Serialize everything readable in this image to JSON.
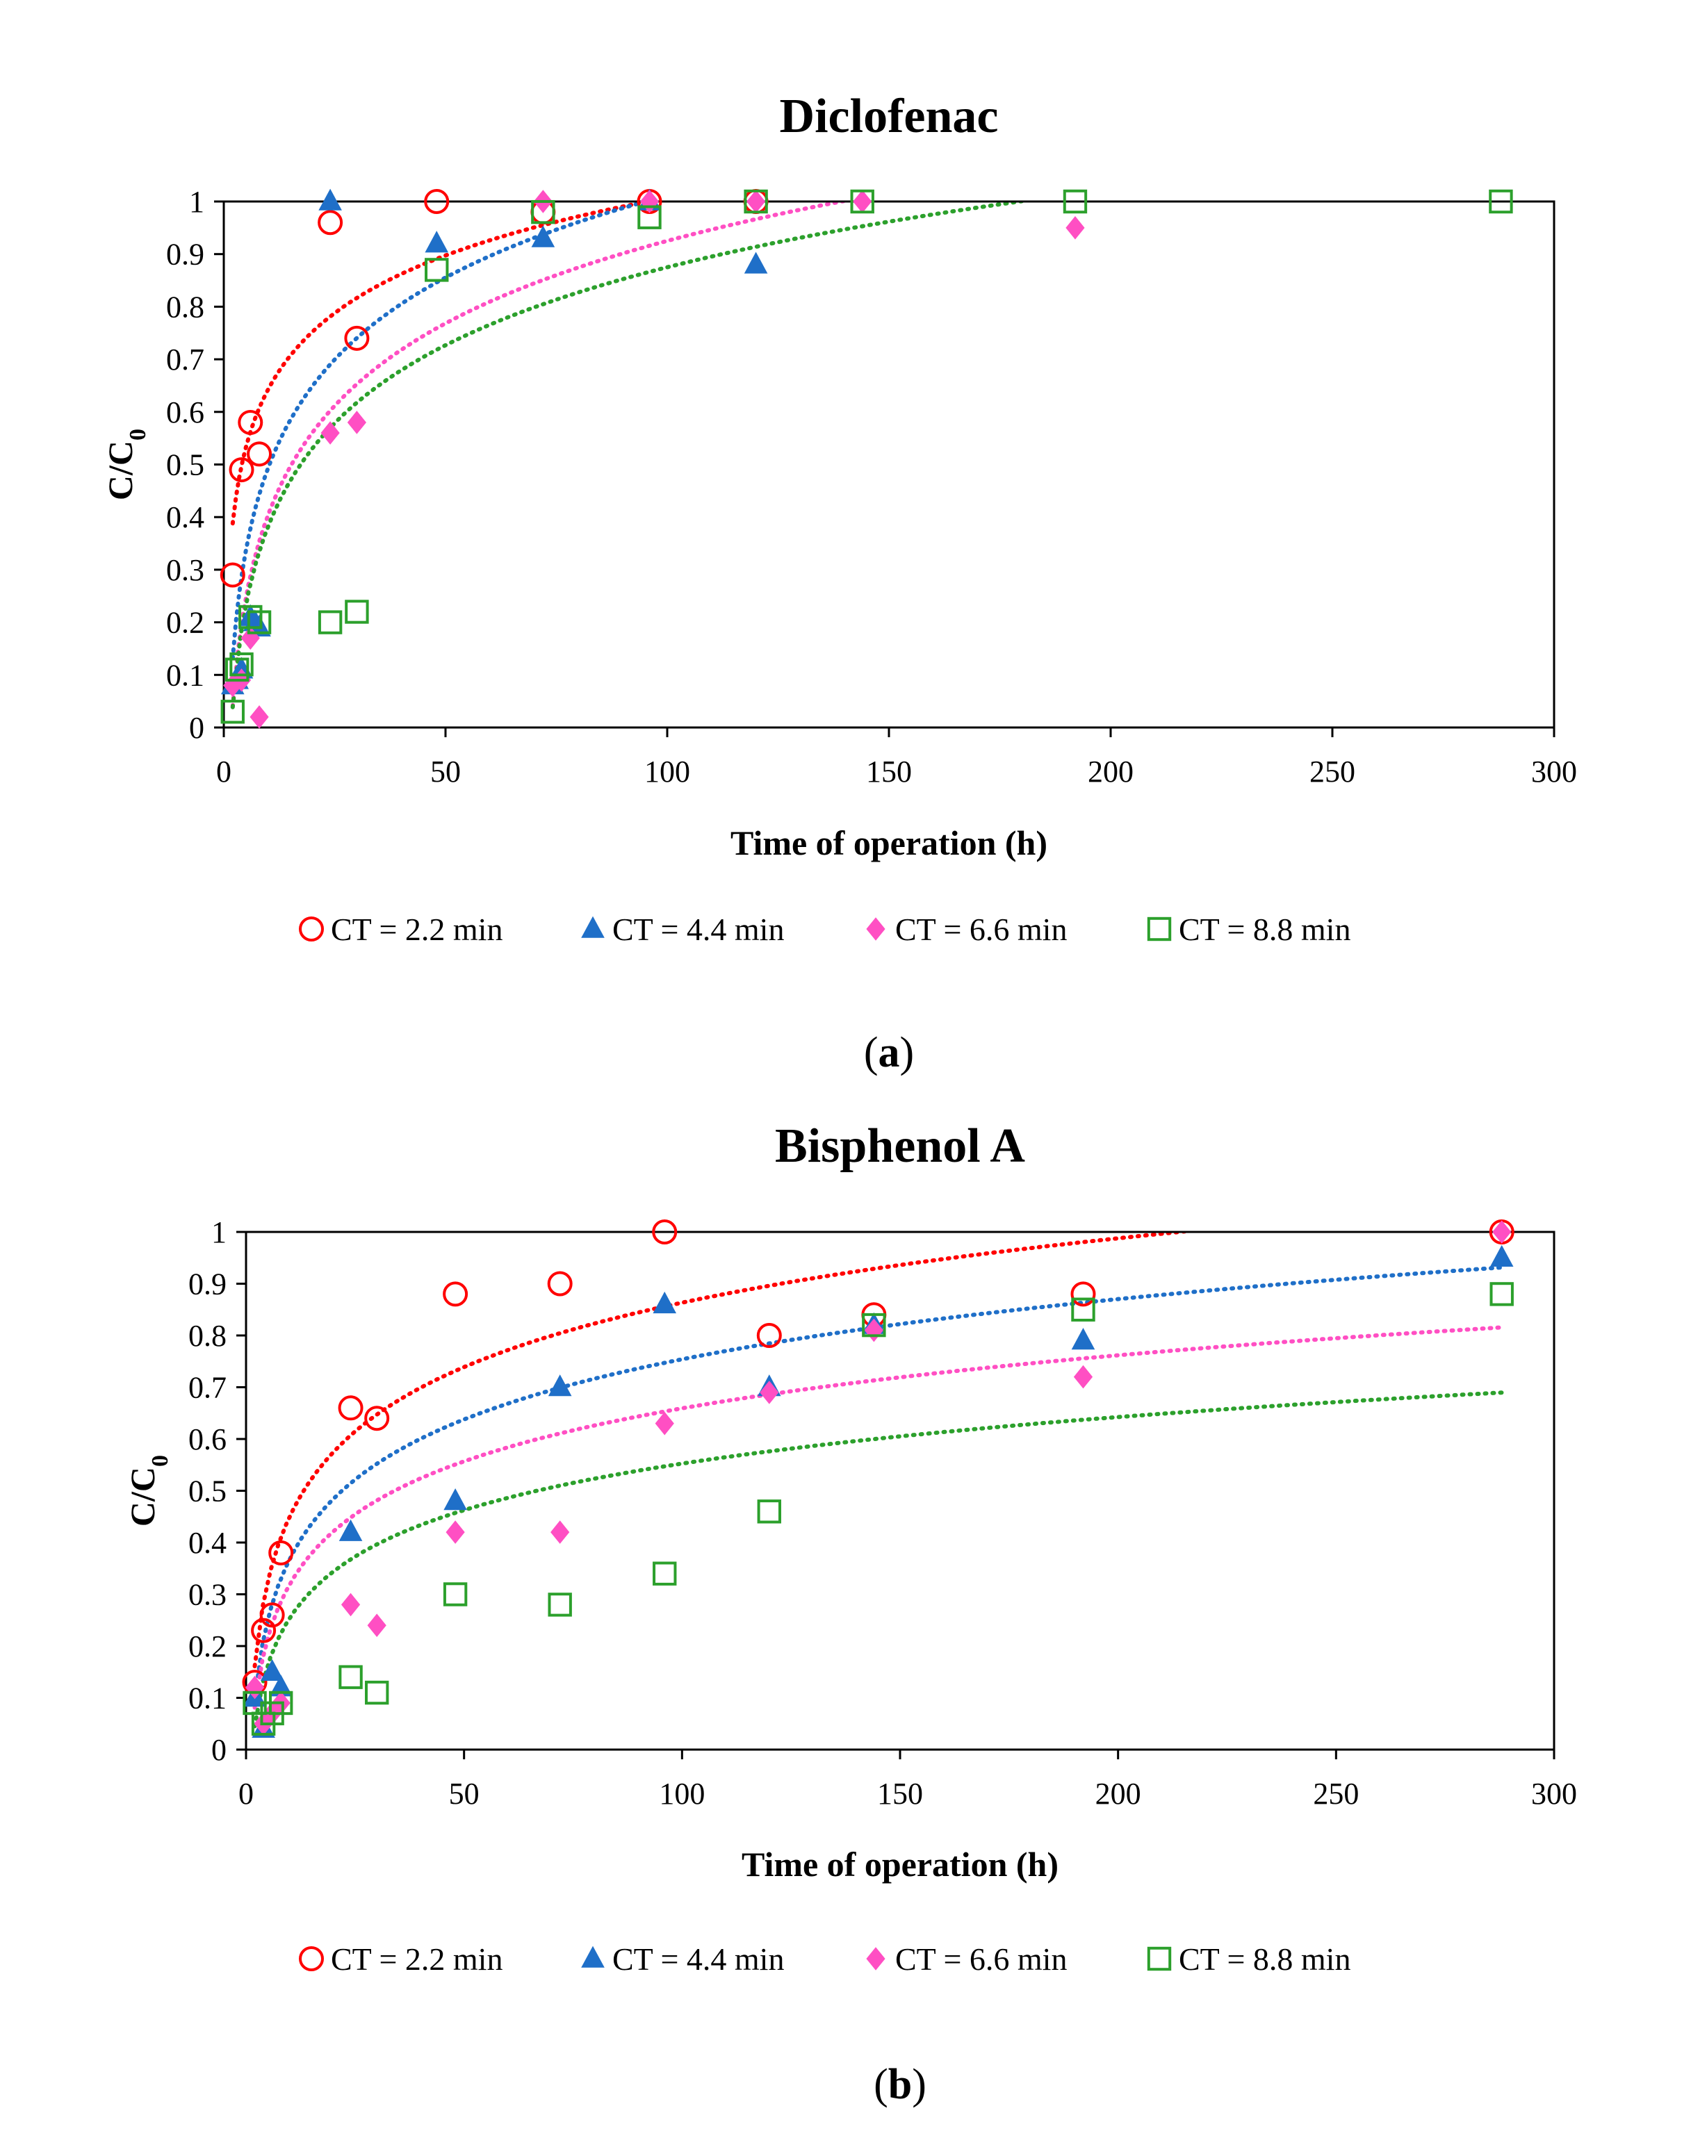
{
  "chart_data": [
    {
      "type": "scatter",
      "title": "Diclofenac",
      "panel_label": "a",
      "xlabel": "Time of operation (h)",
      "ylabel": "C/C",
      "ylabel_sub": "0",
      "xlim": [
        0,
        300
      ],
      "ylim": [
        0,
        1
      ],
      "xticks": [
        0,
        50,
        100,
        150,
        200,
        250,
        300
      ],
      "yticks": [
        0,
        0.1,
        0.2,
        0.3,
        0.4,
        0.5,
        0.6,
        0.7,
        0.8,
        0.9,
        1
      ],
      "grid": false,
      "legend_position": "bottom",
      "series": [
        {
          "name": "CT = 2.2 min",
          "color": "#ff0000",
          "marker": "open-circle",
          "points": [
            [
              2,
              0.29
            ],
            [
              4,
              0.49
            ],
            [
              6,
              0.58
            ],
            [
              8,
              0.52
            ],
            [
              24,
              0.96
            ],
            [
              30,
              0.74
            ],
            [
              48,
              1.0
            ],
            [
              72,
              0.98
            ],
            [
              96,
              1.0
            ],
            [
              120,
              1.0
            ]
          ],
          "trend": {
            "type": "log",
            "a": 0.2785,
            "b": 0.1582
          }
        },
        {
          "name": "CT = 4.4 min",
          "color": "#1f6fc8",
          "marker": "filled-triangle",
          "points": [
            [
              2,
              0.08
            ],
            [
              3,
              0.09
            ],
            [
              4,
              0.11
            ],
            [
              6,
              0.21
            ],
            [
              7,
              0.2
            ],
            [
              8,
              0.19
            ],
            [
              24,
              1.0
            ],
            [
              48,
              0.92
            ],
            [
              72,
              0.93
            ],
            [
              96,
              1.0
            ],
            [
              120,
              0.88
            ]
          ],
          "trend": {
            "type": "log",
            "a": -0.0245,
            "b": 0.2249
          }
        },
        {
          "name": "CT = 6.6 min",
          "color": "#ff4fc3",
          "marker": "filled-diamond",
          "points": [
            [
              2,
              0.08
            ],
            [
              4,
              0.09
            ],
            [
              6,
              0.17
            ],
            [
              8,
              0.02
            ],
            [
              24,
              0.56
            ],
            [
              30,
              0.58
            ],
            [
              72,
              1.0
            ],
            [
              96,
              1.0
            ],
            [
              120,
              1.0
            ],
            [
              144,
              1.0
            ],
            [
              192,
              0.95
            ]
          ],
          "trend": {
            "type": "log",
            "a": -0.1166,
            "b": 0.2262
          }
        },
        {
          "name": "CT = 8.8 min",
          "color": "#2ca02c",
          "marker": "open-square",
          "points": [
            [
              2,
              0.03
            ],
            [
              3,
              0.11
            ],
            [
              4,
              0.12
            ],
            [
              6,
              0.21
            ],
            [
              8,
              0.2
            ],
            [
              24,
              0.2
            ],
            [
              30,
              0.22
            ],
            [
              48,
              0.87
            ],
            [
              72,
              0.98
            ],
            [
              96,
              0.97
            ],
            [
              120,
              1.0
            ],
            [
              144,
              1.0
            ],
            [
              192,
              1.0
            ],
            [
              288,
              1.0
            ]
          ],
          "trend": {
            "type": "log",
            "a": -0.1096,
            "b": 0.2138
          }
        }
      ]
    },
    {
      "type": "scatter",
      "title": "Bisphenol A",
      "panel_label": "b",
      "xlabel": "Time of operation (h)",
      "ylabel": "C/C",
      "ylabel_sub": "0",
      "xlim": [
        0,
        300
      ],
      "ylim": [
        0,
        1
      ],
      "xticks": [
        0,
        50,
        100,
        150,
        200,
        250,
        300
      ],
      "yticks": [
        0,
        0.1,
        0.2,
        0.3,
        0.4,
        0.5,
        0.6,
        0.7,
        0.8,
        0.9,
        1
      ],
      "grid": false,
      "legend_position": "bottom",
      "series": [
        {
          "name": "CT = 2.2 min",
          "color": "#ff0000",
          "marker": "open-circle",
          "points": [
            [
              2,
              0.13
            ],
            [
              4,
              0.23
            ],
            [
              6,
              0.26
            ],
            [
              8,
              0.38
            ],
            [
              24,
              0.66
            ],
            [
              30,
              0.64
            ],
            [
              48,
              0.88
            ],
            [
              72,
              0.9
            ],
            [
              96,
              1.0
            ],
            [
              120,
              0.8
            ],
            [
              144,
              0.84
            ],
            [
              192,
              0.88
            ],
            [
              288,
              1.0
            ]
          ],
          "trend": {
            "type": "log",
            "a": 0.0367,
            "b": 0.1795
          }
        },
        {
          "name": "CT = 4.4 min",
          "color": "#1f6fc8",
          "marker": "filled-triangle",
          "points": [
            [
              2,
              0.1
            ],
            [
              4,
              0.04
            ],
            [
              6,
              0.15
            ],
            [
              8,
              0.12
            ],
            [
              24,
              0.42
            ],
            [
              48,
              0.48
            ],
            [
              72,
              0.7
            ],
            [
              96,
              0.86
            ],
            [
              120,
              0.7
            ],
            [
              144,
              0.82
            ],
            [
              192,
              0.79
            ],
            [
              288,
              0.95
            ]
          ],
          "trend": {
            "type": "log",
            "a": -0.0183,
            "b": 0.1677
          }
        },
        {
          "name": "CT = 6.6 min",
          "color": "#ff4fc3",
          "marker": "filled-diamond",
          "points": [
            [
              2,
              0.12
            ],
            [
              4,
              0.05
            ],
            [
              6,
              0.07
            ],
            [
              8,
              0.09
            ],
            [
              24,
              0.28
            ],
            [
              30,
              0.24
            ],
            [
              48,
              0.42
            ],
            [
              72,
              0.42
            ],
            [
              96,
              0.63
            ],
            [
              120,
              0.69
            ],
            [
              144,
              0.81
            ],
            [
              192,
              0.72
            ],
            [
              288,
              1.0
            ]
          ],
          "trend": {
            "type": "log",
            "a": -0.0214,
            "b": 0.1478
          }
        },
        {
          "name": "CT = 8.8 min",
          "color": "#2ca02c",
          "marker": "open-square",
          "points": [
            [
              2,
              0.09
            ],
            [
              4,
              0.05
            ],
            [
              6,
              0.07
            ],
            [
              8,
              0.09
            ],
            [
              24,
              0.14
            ],
            [
              30,
              0.11
            ],
            [
              48,
              0.3
            ],
            [
              72,
              0.28
            ],
            [
              96,
              0.34
            ],
            [
              120,
              0.46
            ],
            [
              144,
              0.82
            ],
            [
              192,
              0.85
            ],
            [
              288,
              0.88
            ]
          ],
          "trend": {
            "type": "log",
            "a": -0.0448,
            "b": 0.1297
          }
        }
      ]
    }
  ]
}
